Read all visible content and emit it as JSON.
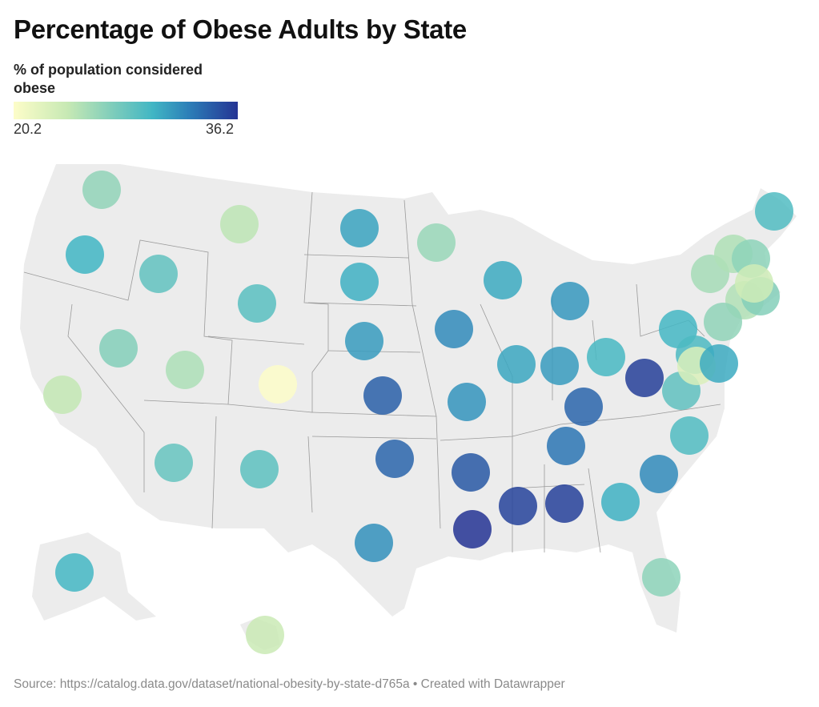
{
  "title": "Percentage of Obese Adults by State",
  "legend": {
    "title": "% of population considered obese",
    "min_label": "20.2",
    "max_label": "36.2"
  },
  "footer": "Source: https://catalog.data.gov/dataset/national-obesity-by-state-d765a • Created with Datawrapper",
  "colors": {
    "low": "#fdfdc9",
    "mid": "#41b6c4",
    "high": "#253494",
    "land": "#ececec",
    "border": "#9a9a9a"
  },
  "chart_data": {
    "type": "symbol-map",
    "value_range": [
      20.2,
      36.2
    ],
    "points": [
      {
        "state": "WA",
        "value": 26.4
      },
      {
        "state": "OR",
        "value": 30.1
      },
      {
        "state": "ID",
        "value": 28.6
      },
      {
        "state": "MT",
        "value": 24.5
      },
      {
        "state": "WY",
        "value": 29.0
      },
      {
        "state": "NV",
        "value": 27.0
      },
      {
        "state": "UT",
        "value": 25.2
      },
      {
        "state": "CA",
        "value": 24.2
      },
      {
        "state": "CO",
        "value": 20.2
      },
      {
        "state": "AZ",
        "value": 28.4
      },
      {
        "state": "NM",
        "value": 28.8
      },
      {
        "state": "ND",
        "value": 31.0
      },
      {
        "state": "SD",
        "value": 30.4
      },
      {
        "state": "NE",
        "value": 31.4
      },
      {
        "state": "KS",
        "value": 34.2
      },
      {
        "state": "OK",
        "value": 33.9
      },
      {
        "state": "TX",
        "value": 31.9
      },
      {
        "state": "MN",
        "value": 26.1
      },
      {
        "state": "IA",
        "value": 32.1
      },
      {
        "state": "MO",
        "value": 31.7
      },
      {
        "state": "AR",
        "value": 34.5
      },
      {
        "state": "LA",
        "value": 36.2
      },
      {
        "state": "WI",
        "value": 30.7
      },
      {
        "state": "IL",
        "value": 30.8
      },
      {
        "state": "MI",
        "value": 31.5
      },
      {
        "state": "IN",
        "value": 31.4
      },
      {
        "state": "OH",
        "value": 29.8
      },
      {
        "state": "KY",
        "value": 33.9
      },
      {
        "state": "TN",
        "value": 33.1
      },
      {
        "state": "MS",
        "value": 35.5
      },
      {
        "state": "AL",
        "value": 35.6
      },
      {
        "state": "GA",
        "value": 30.3
      },
      {
        "state": "FL",
        "value": 26.6
      },
      {
        "state": "SC",
        "value": 32.1
      },
      {
        "state": "NC",
        "value": 29.4
      },
      {
        "state": "VA",
        "value": 28.7
      },
      {
        "state": "WV",
        "value": 35.7
      },
      {
        "state": "PA",
        "value": 30.0
      },
      {
        "state": "NY",
        "value": 25.5
      },
      {
        "state": "VT",
        "value": 25.1
      },
      {
        "state": "NH",
        "value": 26.6
      },
      {
        "state": "ME",
        "value": 29.4
      },
      {
        "state": "CT",
        "value": 25.0
      },
      {
        "state": "RI",
        "value": 27.0
      },
      {
        "state": "MA",
        "value": 23.5
      },
      {
        "state": "NJ",
        "value": 26.5
      },
      {
        "state": "MD",
        "value": 29.6
      },
      {
        "state": "DC",
        "value": 22.7
      },
      {
        "state": "DE",
        "value": 30.7
      },
      {
        "state": "AK",
        "value": 30.0
      },
      {
        "state": "HI",
        "value": 23.8
      }
    ]
  }
}
